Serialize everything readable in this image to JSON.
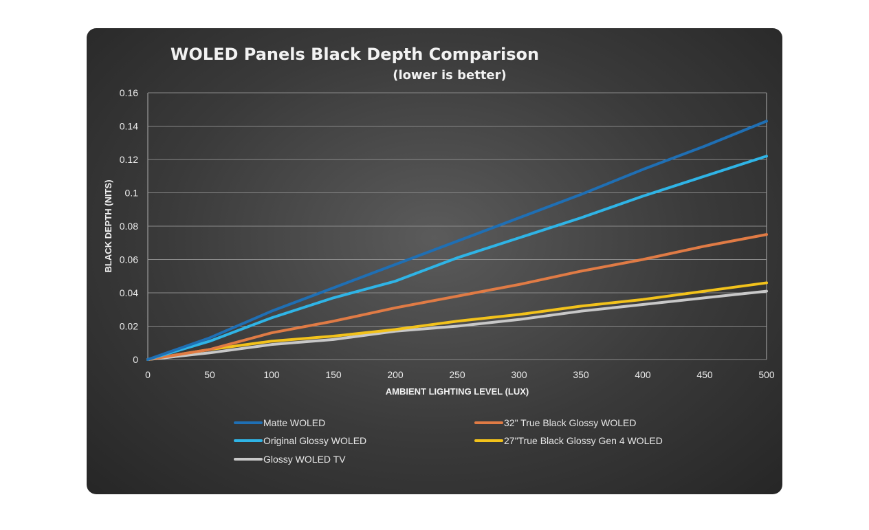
{
  "chart_data": {
    "type": "line",
    "title": "WOLED Panels Black Depth Comparison",
    "subtitle": "(lower is better)",
    "xlabel": "AMBIENT LIGHTING LEVEL (LUX)",
    "ylabel": "BLACK DEPTH (NITS)",
    "xlim": [
      0,
      500
    ],
    "ylim": [
      0,
      0.16
    ],
    "xticks": [
      "0",
      "50",
      "100",
      "150",
      "200",
      "250",
      "300",
      "350",
      "400",
      "450",
      "500"
    ],
    "yticks": [
      "0",
      "0.02",
      "0.04",
      "0.06",
      "0.08",
      "0.1",
      "0.12",
      "0.14",
      "0.16"
    ],
    "grid": true,
    "legend_position": "bottom",
    "x": [
      0,
      50,
      100,
      150,
      200,
      250,
      300,
      350,
      400,
      450,
      500
    ],
    "series": [
      {
        "name": "Matte WOLED",
        "color": "#1f6fb4",
        "values": [
          0,
          0.013,
          0.029,
          0.043,
          0.057,
          0.071,
          0.085,
          0.099,
          0.114,
          0.128,
          0.143
        ]
      },
      {
        "name": "32\" True Black Glossy WOLED",
        "color": "#e07b45",
        "values": [
          0,
          0.006,
          0.016,
          0.023,
          0.031,
          0.038,
          0.045,
          0.053,
          0.06,
          0.068,
          0.075
        ]
      },
      {
        "name": "Original Glossy WOLED",
        "color": "#2fb4e6",
        "values": [
          0,
          0.011,
          0.025,
          0.037,
          0.047,
          0.061,
          0.073,
          0.085,
          0.098,
          0.11,
          0.122
        ]
      },
      {
        "name": "27\"True Black Glossy Gen 4 WOLED",
        "color": "#f2c21b",
        "values": [
          0,
          0.006,
          0.011,
          0.014,
          0.018,
          0.023,
          0.027,
          0.032,
          0.036,
          0.041,
          0.046
        ]
      },
      {
        "name": "Glossy WOLED TV",
        "color": "#c8c8c8",
        "values": [
          0,
          0.004,
          0.009,
          0.012,
          0.017,
          0.02,
          0.024,
          0.029,
          0.033,
          0.037,
          0.041
        ]
      }
    ]
  }
}
